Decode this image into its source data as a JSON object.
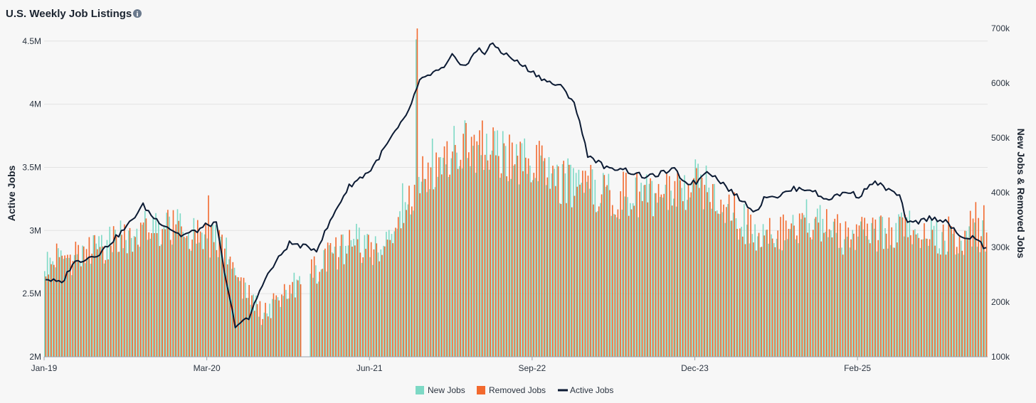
{
  "chart_data": {
    "type": "bar+line",
    "title": "U.S. Weekly Job Listings",
    "info_icon": "info-icon",
    "x_tick_labels": [
      "Jan-19",
      "Mar-20",
      "Jun-21",
      "Sep-22",
      "Dec-23",
      "Feb-25"
    ],
    "left_axis": {
      "label": "Active Jobs",
      "range": [
        2000000,
        4600000
      ],
      "ticks": [
        2000000,
        2500000,
        3000000,
        3500000,
        4000000,
        4500000
      ],
      "tick_labels": [
        "2M",
        "2.5M",
        "3M",
        "3.5M",
        "4M",
        "4.5M"
      ]
    },
    "right_axis": {
      "label": "New Jobs & Removed Jobs",
      "range": [
        100000,
        700000
      ],
      "ticks": [
        100000,
        200000,
        300000,
        400000,
        500000,
        600000,
        700000
      ],
      "tick_labels": [
        "100k",
        "200k",
        "300k",
        "400k",
        "500k",
        "600k",
        "700k"
      ]
    },
    "colors": {
      "new_jobs": "#7dd9c5",
      "removed_jobs": "#f2692e",
      "active_jobs": "#0b1a33"
    },
    "weeks_total": 348,
    "series": [
      {
        "name": "New Jobs",
        "axis": "right",
        "type": "bar",
        "anchor_week": [
          0,
          15,
          30,
          45,
          60,
          61,
          62,
          65,
          70,
          80,
          90,
          100,
          115,
          124,
          130,
          140,
          150,
          160,
          170,
          180,
          190,
          200,
          215,
          230,
          240,
          245,
          252,
          260,
          270,
          280,
          288,
          290,
          300,
          310,
          320,
          330,
          335,
          347
        ],
        "anchor_value": [
          285000,
          290000,
          335000,
          350000,
          325000,
          305000,
          320000,
          315000,
          265000,
          180000,
          230000,
          270000,
          320000,
          290000,
          380000,
          455000,
          490000,
          500000,
          475000,
          465000,
          440000,
          420000,
          400000,
          405000,
          430000,
          415000,
          390000,
          340000,
          330000,
          360000,
          355000,
          330000,
          325000,
          335000,
          345000,
          325000,
          325000,
          325000
        ]
      },
      {
        "name": "Removed Jobs",
        "axis": "right",
        "type": "bar",
        "anchor_week": [
          0,
          15,
          30,
          45,
          60,
          62,
          65,
          70,
          80,
          90,
          100,
          115,
          124,
          130,
          140,
          150,
          160,
          170,
          180,
          190,
          200,
          215,
          230,
          240,
          245,
          252,
          260,
          270,
          280,
          288,
          290,
          300,
          310,
          320,
          330,
          335,
          347
        ],
        "anchor_value": [
          285000,
          295000,
          335000,
          345000,
          325000,
          320000,
          320000,
          250000,
          185000,
          225000,
          270000,
          330000,
          290000,
          375000,
          460000,
          485000,
          505000,
          480000,
          465000,
          440000,
          420000,
          405000,
          405000,
          430000,
          415000,
          385000,
          345000,
          330000,
          350000,
          355000,
          335000,
          330000,
          335000,
          340000,
          330000,
          330000,
          370000
        ]
      },
      {
        "name": "Active Jobs",
        "axis": "left",
        "type": "line",
        "anchor_week": [
          0,
          6,
          10,
          20,
          30,
          36,
          40,
          45,
          50,
          56,
          60,
          63,
          67,
          70,
          75,
          80,
          85,
          90,
          100,
          108,
          112,
          120,
          128,
          133,
          138,
          143,
          147,
          150,
          155,
          160,
          162,
          165,
          168,
          175,
          180,
          185,
          190,
          195,
          200,
          208,
          212,
          216,
          222,
          228,
          232,
          236,
          240,
          244,
          250,
          256,
          262,
          266,
          270,
          276,
          282,
          287,
          290,
          296,
          300,
          305,
          308,
          315,
          318,
          322,
          326,
          332,
          337,
          343,
          347
        ],
        "anchor_value": [
          2620000,
          2580000,
          2740000,
          2820000,
          3030000,
          3200000,
          3100000,
          3030000,
          2960000,
          3000000,
          3050000,
          3050000,
          2550000,
          2250000,
          2300000,
          2580000,
          2750000,
          2900000,
          2850000,
          3200000,
          3350000,
          3480000,
          3750000,
          3900000,
          4180000,
          4250000,
          4280000,
          4380000,
          4300000,
          4450000,
          4400000,
          4480000,
          4420000,
          4320000,
          4250000,
          4180000,
          4140000,
          4020000,
          3600000,
          3480000,
          3500000,
          3460000,
          3420000,
          3460000,
          3480000,
          3380000,
          3380000,
          3480000,
          3370000,
          3250000,
          3150000,
          3280000,
          3270000,
          3330000,
          3330000,
          3250000,
          3260000,
          3310000,
          3270000,
          3380000,
          3360000,
          3270000,
          3050000,
          3070000,
          3100000,
          3080000,
          2950000,
          2940000,
          2850000
        ]
      }
    ],
    "legend": [
      "New Jobs",
      "Removed Jobs",
      "Active Jobs"
    ],
    "legend_position": "bottom-center"
  }
}
